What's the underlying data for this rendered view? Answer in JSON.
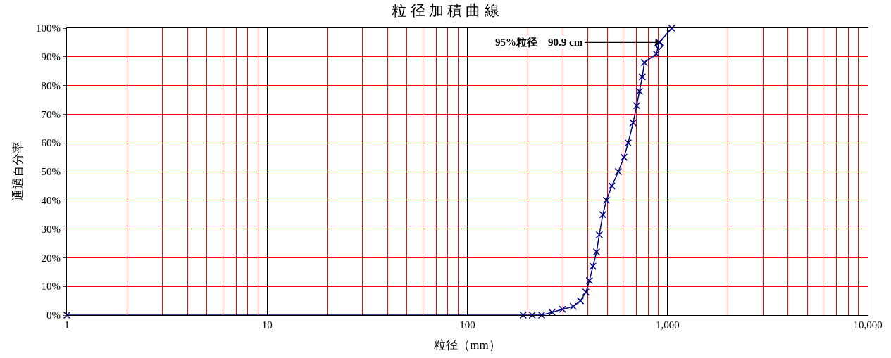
{
  "chart_data": {
    "type": "line",
    "title": "粒 径 加 積 曲 線",
    "xlabel": "粒径（mm）",
    "ylabel": "通過百分率",
    "log": "x",
    "grid": true,
    "marker": "cross",
    "xlim": [
      1,
      10000
    ],
    "ylim": [
      0,
      100
    ],
    "xticks": [
      1,
      10,
      100,
      {
        "value": 1000,
        "label": "1,000"
      },
      {
        "value": 10000,
        "label": "10,000"
      }
    ],
    "yticks": [
      {
        "value": 0,
        "label": "0%"
      },
      {
        "value": 10,
        "label": "10%"
      },
      {
        "value": 20,
        "label": "20%"
      },
      {
        "value": 30,
        "label": "30%"
      },
      {
        "value": 40,
        "label": "40%"
      },
      {
        "value": 50,
        "label": "50%"
      },
      {
        "value": 60,
        "label": "60%"
      },
      {
        "value": 70,
        "label": "70%"
      },
      {
        "value": 80,
        "label": "80%"
      },
      {
        "value": 90,
        "label": "90%"
      },
      {
        "value": 100,
        "label": "100%"
      }
    ],
    "series": [
      {
        "color": "#000080",
        "x": [
          1,
          190,
          211,
          235,
          265,
          299,
          338,
          367,
          391,
          407,
          424,
          442,
          456,
          475,
          495,
          527,
          568,
          606,
          636,
          673,
          701,
          724,
          748,
          766,
          879,
          909,
          1050
        ],
        "values": [
          0,
          0,
          0,
          0,
          1,
          2,
          3,
          5,
          8,
          12,
          17,
          22,
          28,
          35,
          40,
          45,
          50,
          55,
          60,
          67,
          73,
          78,
          83,
          88,
          91,
          95,
          100
        ]
      },
      {
        "type": "scatter",
        "marker": "diamond",
        "color": "#000080",
        "x": [
          909
        ],
        "values": [
          94
        ]
      }
    ],
    "annotations": [
      {
        "text": "95%粒径　90.9 cm",
        "x": 909,
        "y": 95
      }
    ]
  }
}
